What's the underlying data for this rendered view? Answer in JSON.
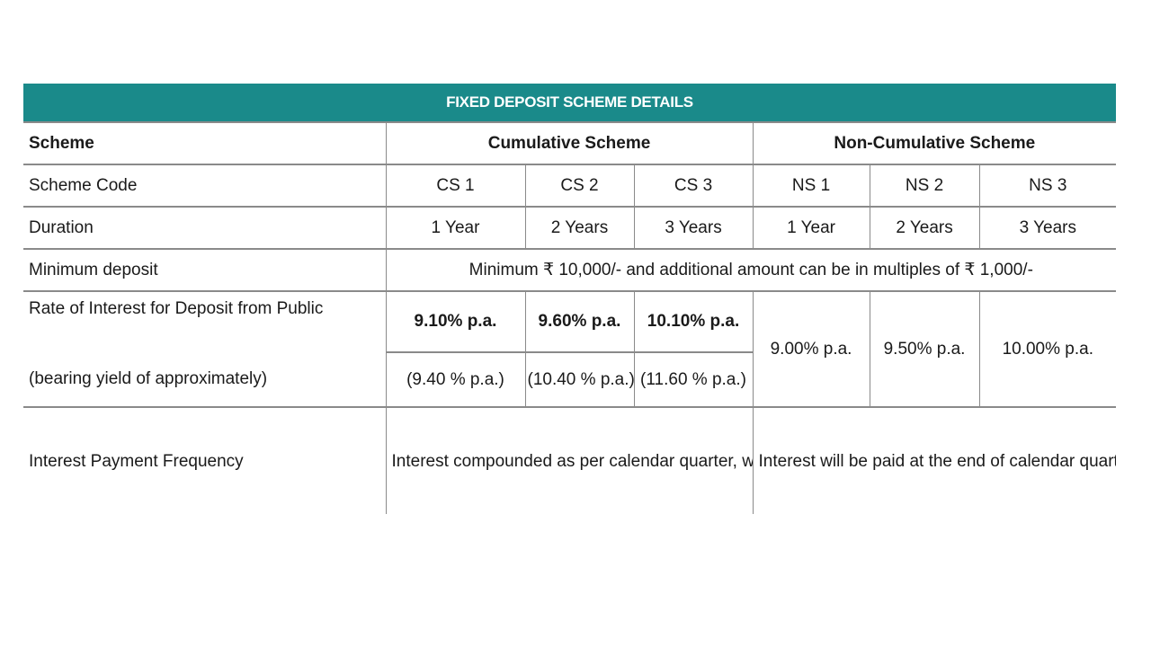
{
  "table_title": "FIXED DEPOSIT SCHEME DETAILS",
  "colors": {
    "banner": "#1a8a8a",
    "border": "#8a8a8a"
  },
  "header": {
    "scheme_label": "Scheme",
    "cumulative": "Cumulative Scheme",
    "non_cumulative": "Non-Cumulative Scheme"
  },
  "scheme_code": {
    "label": "Scheme Code",
    "codes": [
      "CS 1",
      "CS 2",
      "CS 3",
      "NS 1",
      "NS 2",
      "NS 3"
    ]
  },
  "duration": {
    "label": "Duration",
    "values": [
      "1 Year",
      "2 Years",
      "3 Years",
      "1 Year",
      "2 Years",
      "3 Years"
    ]
  },
  "minimum_deposit": {
    "label": "Minimum deposit",
    "value": "Minimum ₹ 10,000/- and additional amount can be in multiples of ₹ 1,000/-"
  },
  "rate_of_interest": {
    "label": "Rate of Interest for Deposit from Public",
    "yield_label": "(bearing yield of approximately)",
    "cumulative_rates": [
      "9.10% p.a.",
      "9.60% p.a.",
      "10.10% p.a."
    ],
    "cumulative_yields": [
      "(9.40 % p.a.)",
      "(10.40 % p.a.)",
      "(11.60 % p.a.)"
    ],
    "non_cumulative_rates": [
      "9.00% p.a.",
      "9.50% p.a.",
      "10.00% p.a."
    ]
  },
  "interest_payment": {
    "label": "Interest Payment Frequency",
    "cumulative": "Interest compounded as per calendar quarter, will be payable on maturity date or on the previous business day in case maturity date happens to be a holiday.",
    "non_cumulative": "Interest will be paid at the end of calendar quarters and at maturity or on the previous business day in case end of quarter happens to be a holiday."
  }
}
